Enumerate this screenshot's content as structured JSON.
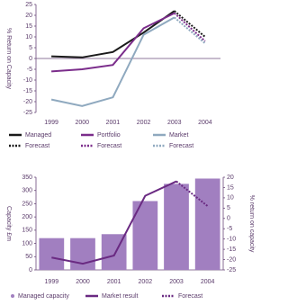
{
  "chart_data": [
    {
      "type": "line",
      "ylabel": "% Return on Capacity",
      "categories": [
        "1999",
        "2000",
        "2001",
        "2002",
        "2003",
        "2004"
      ],
      "ylim": [
        -25,
        25
      ],
      "yticks": [
        -25,
        -20,
        -15,
        -10,
        -5,
        0,
        5,
        10,
        15,
        20,
        25
      ],
      "series": [
        {
          "name": "Managed",
          "color": "#1a1a1a",
          "style": "solid",
          "values": [
            1,
            0.5,
            3,
            12,
            22,
            null
          ]
        },
        {
          "name": "Forecast",
          "color": "#1a1a1a",
          "style": "dotted",
          "values": [
            null,
            null,
            null,
            null,
            22,
            10
          ]
        },
        {
          "name": "Portfolio",
          "color": "#7b2d8b",
          "style": "solid",
          "values": [
            -6,
            -5,
            -3,
            14,
            21,
            null
          ]
        },
        {
          "name": "Forecast",
          "color": "#7b2d8b",
          "style": "dotted",
          "values": [
            null,
            null,
            null,
            null,
            21,
            8
          ]
        },
        {
          "name": "Market",
          "color": "#8fa9bf",
          "style": "solid",
          "values": [
            -19,
            -22,
            -18,
            11,
            19,
            null
          ]
        },
        {
          "name": "Forecast",
          "color": "#8fa9bf",
          "style": "dotted",
          "values": [
            null,
            null,
            null,
            null,
            19,
            7
          ]
        }
      ]
    },
    {
      "type": "combo",
      "ylabel": "Capacity £m",
      "y2label": "% return on capacity",
      "categories": [
        "1999",
        "2000",
        "2001",
        "2002",
        "2003",
        "2004"
      ],
      "ylim": [
        0,
        350
      ],
      "yticks": [
        0,
        50,
        100,
        150,
        200,
        250,
        300,
        350
      ],
      "y2lim": [
        -25,
        20
      ],
      "y2ticks": [
        -25,
        -20,
        -15,
        -10,
        -5,
        0,
        5,
        10,
        15,
        20
      ],
      "series": [
        {
          "name": "Managed capacity",
          "color": "#a17fc0",
          "kind": "bar",
          "values": [
            120,
            120,
            135,
            260,
            325,
            345
          ]
        },
        {
          "name": "Market result",
          "color": "#6a2a82",
          "kind": "line",
          "style": "solid",
          "axis": "y2",
          "values": [
            -19,
            -22,
            -18,
            11,
            18,
            null
          ]
        },
        {
          "name": "Forecast",
          "color": "#6a2a82",
          "kind": "line",
          "style": "dotted",
          "axis": "y2",
          "values": [
            null,
            null,
            null,
            null,
            18,
            6
          ]
        }
      ]
    }
  ]
}
